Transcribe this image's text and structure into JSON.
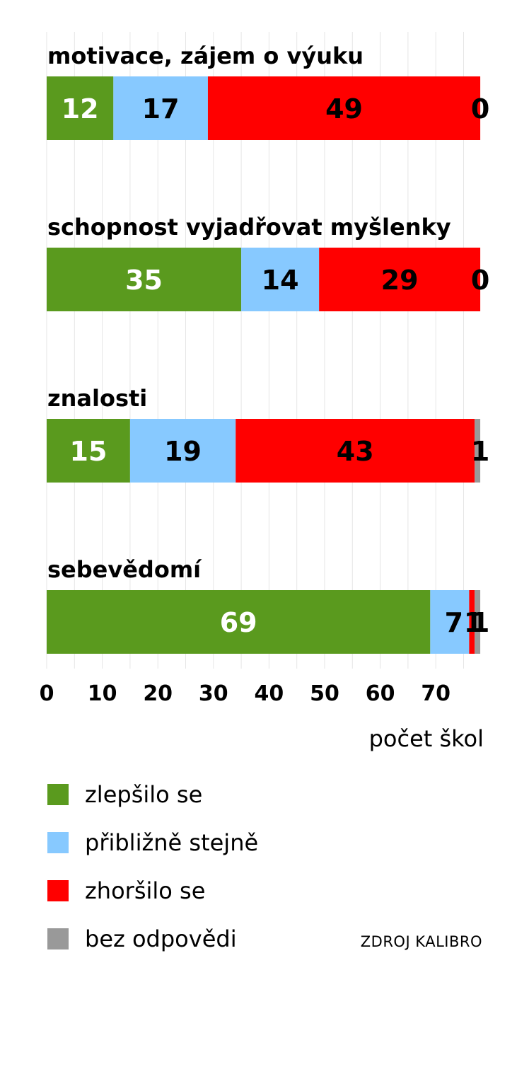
{
  "chart_data": {
    "type": "bar",
    "orientation": "horizontal-stacked",
    "categories": [
      "motivace, zájem o výuku",
      "schopnost vyjadřovat myšlenky",
      "znalosti",
      "sebevědomí"
    ],
    "series": [
      {
        "name": "zlepšilo se",
        "color": "#5a9a1e",
        "label_color": "#ffffff",
        "values": [
          12,
          35,
          15,
          69
        ]
      },
      {
        "name": "přibližně stejně",
        "color": "#87c9ff",
        "label_color": "#000000",
        "values": [
          17,
          14,
          19,
          7
        ]
      },
      {
        "name": "zhoršilo se",
        "color": "#ff0000",
        "label_color": "#000000",
        "values": [
          49,
          29,
          43,
          1
        ]
      },
      {
        "name": "bez odpovědi",
        "color": "#999999",
        "label_color": "#000000",
        "values": [
          0,
          0,
          1,
          1
        ]
      }
    ],
    "xticks": [
      "0",
      "10",
      "20",
      "30",
      "40",
      "50",
      "60",
      "70"
    ],
    "xlim": [
      0,
      78
    ],
    "xlabel": "počet škol",
    "grid": true,
    "legend_position": "bottom-left",
    "source": "ZDROJ KALIBRO"
  }
}
